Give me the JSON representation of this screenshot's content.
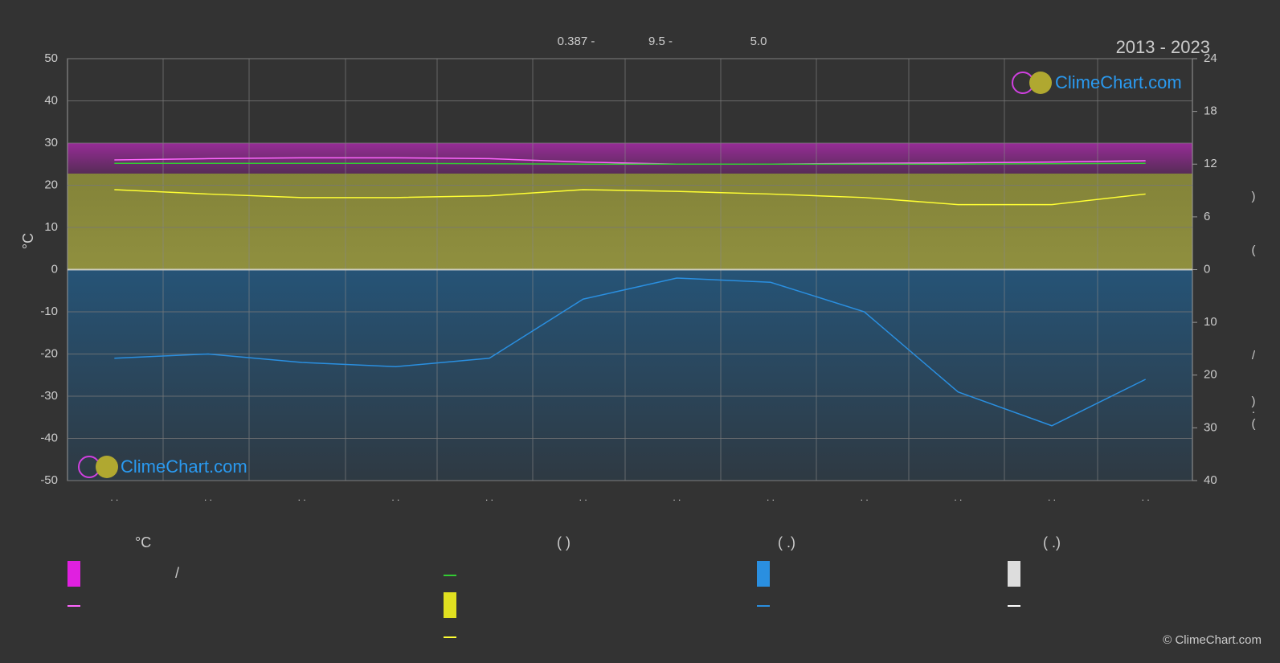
{
  "chart_data": {
    "type": "line",
    "title": "2013 - 2023",
    "header_stats": [
      "0.387 -",
      "9.5 -",
      "5.0"
    ],
    "logo": "ClimeChart.com",
    "copyright": "© ClimeChart.com",
    "y_label": "°C",
    "y2_label_parts": [
      ")",
      "("
    ],
    "y3_label_parts": [
      "/",
      ")",
      "·",
      "("
    ],
    "categories": [
      ". .",
      ". .",
      ". .",
      ". .",
      ". .",
      ". .",
      ". .",
      ". .",
      ". .",
      ". .",
      ". .",
      ". ."
    ],
    "ylim": [
      -50,
      50
    ],
    "yticks": [
      -50,
      -40,
      -30,
      -20,
      -10,
      0,
      10,
      20,
      30,
      40,
      50
    ],
    "y2lim": [
      0,
      24
    ],
    "y2ticks": [
      0,
      6,
      12,
      18,
      24
    ],
    "y3lim": [
      0,
      40
    ],
    "y3ticks": [
      10,
      20,
      30,
      40
    ],
    "grid": true,
    "series": [
      {
        "color": "#ff66ff",
        "values": [
          26,
          26.3,
          26.5,
          26.5,
          26.3,
          25.5,
          25,
          25,
          25.2,
          25.3,
          25.5,
          25.8
        ]
      },
      {
        "color": "#33cc33",
        "values": [
          25.2,
          25.2,
          25.2,
          25.2,
          25.1,
          25,
          25,
          25,
          25,
          25,
          25.1,
          25.2
        ]
      },
      {
        "color": "#ffff33",
        "axis": "y2",
        "values": [
          9.1,
          8.6,
          8.2,
          8.2,
          8.4,
          9.1,
          8.9,
          8.6,
          8.2,
          7.4,
          7.4,
          8.6
        ]
      },
      {
        "color": "#2a8fe0",
        "axis": "y3",
        "values": [
          16.8,
          16,
          17.6,
          18.4,
          16.8,
          5.6,
          1.6,
          2.4,
          8,
          23.2,
          29.6,
          20.8
        ]
      }
    ],
    "legend": {
      "headers": [
        "°C",
        "(          )",
        "(   .)",
        "(   .)"
      ],
      "slash": "/"
    }
  }
}
